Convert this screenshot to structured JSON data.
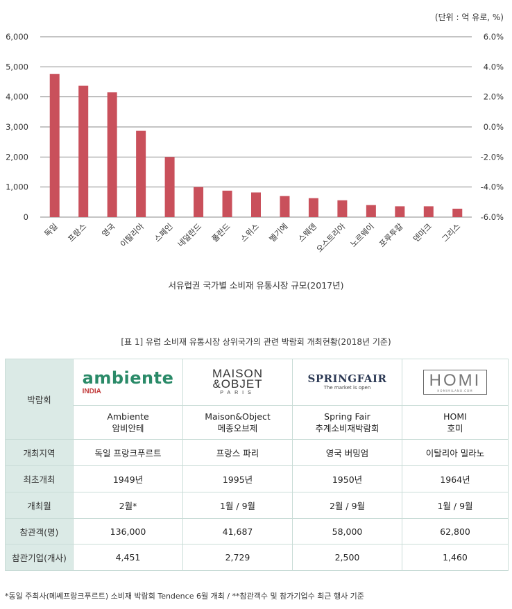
{
  "chart_data": {
    "type": "bar",
    "unit_note": "(단위 : 억 유로, %)",
    "categories": [
      "독일",
      "프랑스",
      "영국",
      "이탈리아",
      "스페인",
      "네덜란드",
      "폴란드",
      "스위스",
      "벨기에",
      "스웨덴",
      "오스트리아",
      "노르웨이",
      "포루투칼",
      "덴마크",
      "그리스"
    ],
    "values": [
      4760,
      4370,
      4150,
      2870,
      2000,
      1000,
      880,
      820,
      700,
      630,
      560,
      400,
      360,
      360,
      280
    ],
    "ylim": [
      0,
      6000
    ],
    "yticks": [
      "0",
      "1,000",
      "2,000",
      "3,000",
      "4,000",
      "5,000",
      "6,000"
    ],
    "y2lim": [
      -6.0,
      6.0
    ],
    "y2ticks": [
      "-6.0%",
      "-4.0%",
      "-2.0%",
      "0.0%",
      "2.0%",
      "4.0%",
      "6.0%"
    ],
    "grid": true,
    "bar_color": "#c9505b",
    "title": "서유럽권 국가별 소비재 유통시장 규모(2017년)"
  },
  "table": {
    "title": "[표 1] 유럽 소비재 유통시장 상위국가의 관련 박람회 개최현황(2018년 기준)",
    "header_label": "박람회",
    "logos": {
      "ambiente": {
        "line1": "ambiente",
        "line2": "INDIA"
      },
      "maison": {
        "line1a": "MAISON",
        "line1b": "&OBJET",
        "line2": "PARIS"
      },
      "spring": {
        "line1": "SPRINGFAIR",
        "line2": "The market is open"
      },
      "homi": {
        "line1": "HOMI",
        "line2": "HOMIMILANO.COM"
      }
    },
    "fairs": [
      {
        "name_en": "Ambiente",
        "name_ko": "암비안테"
      },
      {
        "name_en": "Maison&Object",
        "name_ko": "메종오브제"
      },
      {
        "name_en": "Spring Fair",
        "name_ko": "추계소비재박람회"
      },
      {
        "name_en": "HOMI",
        "name_ko": "호미"
      }
    ],
    "rows": [
      {
        "label": "개최지역",
        "cells": [
          "독일 프랑크푸르트",
          "프랑스 파리",
          "영국 버밍엄",
          "이탈리아 밀라노"
        ]
      },
      {
        "label": "최초개최",
        "cells": [
          "1949년",
          "1995년",
          "1950년",
          "1964년"
        ]
      },
      {
        "label": "개최월",
        "cells": [
          "2월*",
          "1월 / 9월",
          "2월 / 9월",
          "1월 / 9월"
        ]
      },
      {
        "label": "참관객(명)",
        "cells": [
          "136,000",
          "41,687",
          "58,000",
          "62,800"
        ]
      },
      {
        "label": "참관기업(개사)",
        "cells": [
          "4,451",
          "2,729",
          "2,500",
          "1,460"
        ]
      }
    ],
    "header_bg": "#dbeae6",
    "border_color": "#c9dcd7"
  },
  "footnote": "*동일 주최사(메쎄프랑크푸르트) 소비재 박람회 Tendence 6월 개최 / **참관객수 및 참가기업수 최근 행사 기준"
}
